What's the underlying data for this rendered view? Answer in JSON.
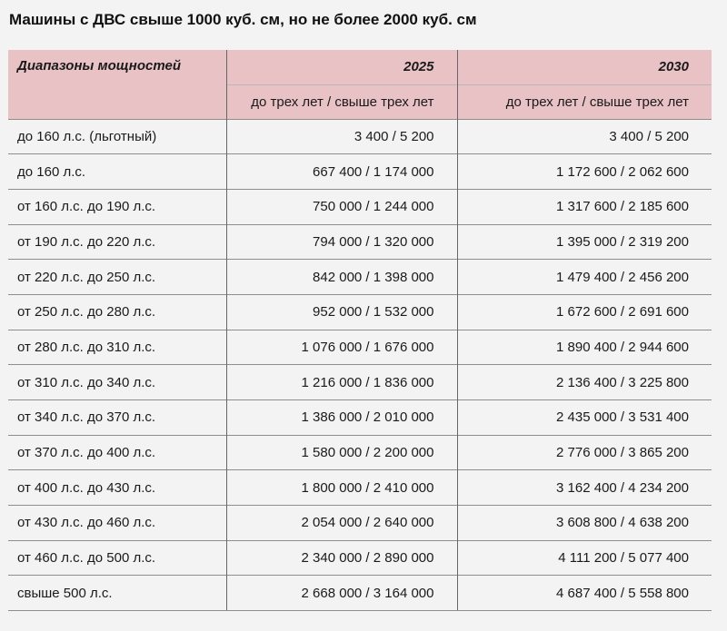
{
  "title": "Машины с ДВС свыше 1000 куб. см, но не более 2000 куб. см",
  "table": {
    "header": {
      "range": "Диапазоны мощностей",
      "year1": "2025",
      "year2": "2030",
      "sub1": "до трех лет / свыше трех лет",
      "sub2": "до трех лет / свыше трех лет"
    },
    "rows": [
      {
        "range": "до 160 л.с. (льготный)",
        "y2025": "3 400 / 5 200",
        "y2030": "3 400 / 5 200"
      },
      {
        "range": "до 160 л.с.",
        "y2025": "667 400 / 1 174 000",
        "y2030": "1 172 600 / 2 062 600"
      },
      {
        "range": "от 160 л.с. до 190 л.с.",
        "y2025": "750 000 / 1 244 000",
        "y2030": "1 317 600 / 2 185 600"
      },
      {
        "range": "от 190 л.с. до 220 л.с.",
        "y2025": "794 000 / 1 320 000",
        "y2030": "1 395 000 / 2 319 200"
      },
      {
        "range": "от 220 л.с. до 250 л.с.",
        "y2025": "842 000 / 1 398 000",
        "y2030": "1 479 400 / 2 456 200"
      },
      {
        "range": "от 250 л.с. до 280 л.с.",
        "y2025": "952 000 / 1 532 000",
        "y2030": "1 672 600 / 2 691 600"
      },
      {
        "range": "от 280 л.с. до 310 л.с.",
        "y2025": "1 076 000 / 1 676 000",
        "y2030": "1 890 400 / 2 944 600"
      },
      {
        "range": "от 310 л.с. до 340 л.с.",
        "y2025": "1 216 000 / 1 836 000",
        "y2030": "2 136 400 / 3 225 800"
      },
      {
        "range": "от 340 л.с. до 370 л.с.",
        "y2025": "1 386 000 / 2 010 000",
        "y2030": "2 435 000 / 3 531 400"
      },
      {
        "range": "от 370 л.с. до 400 л.с.",
        "y2025": "1 580 000 / 2 200 000",
        "y2030": "2 776 000 / 3 865 200"
      },
      {
        "range": "от 400 л.с. до 430 л.с.",
        "y2025": "1 800 000 / 2 410 000",
        "y2030": "3 162 400 / 4 234 200"
      },
      {
        "range": "от 430 л.с. до 460 л.с.",
        "y2025": "2 054 000 / 2 640 000",
        "y2030": "3 608 800 / 4 638 200"
      },
      {
        "range": "от 460 л.с. до 500 л.с.",
        "y2025": "2 340 000 / 2 890 000",
        "y2030": "4 111 200 / 5 077 400"
      },
      {
        "range": "свыше 500 л.с.",
        "y2025": "2 668 000 / 3 164 000",
        "y2030": "4 687 400 / 5 558 800"
      }
    ]
  },
  "colors": {
    "header_bg": "#e9c2c6",
    "page_bg": "#f3f3f3"
  }
}
